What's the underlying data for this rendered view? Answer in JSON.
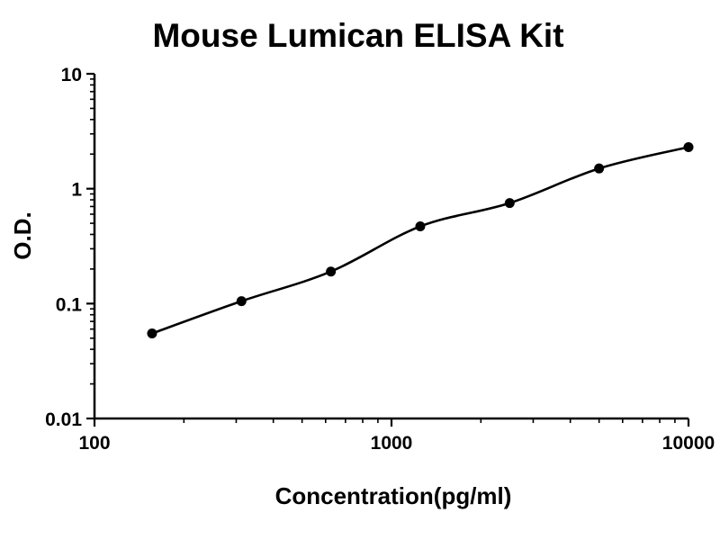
{
  "chart_data": {
    "type": "scatter-line",
    "title": "Mouse Lumican ELISA Kit",
    "xlabel": "Concentration(pg/ml)",
    "ylabel": "O.D.",
    "x_scale": "log",
    "y_scale": "log",
    "xlim": [
      100,
      10000
    ],
    "ylim": [
      0.01,
      10
    ],
    "x_ticks": [
      100,
      1000,
      10000
    ],
    "y_ticks": [
      0.01,
      0.1,
      1,
      10
    ],
    "grid": false,
    "legend": "none",
    "points": [
      {
        "x": 156.25,
        "y": 0.055
      },
      {
        "x": 312.5,
        "y": 0.105
      },
      {
        "x": 625,
        "y": 0.19
      },
      {
        "x": 1250,
        "y": 0.47
      },
      {
        "x": 2500,
        "y": 0.75
      },
      {
        "x": 5000,
        "y": 1.5
      },
      {
        "x": 10000,
        "y": 2.3
      }
    ],
    "colors": {
      "line": "#000000",
      "marker": "#000000",
      "text": "#000000",
      "background": "#ffffff"
    }
  }
}
